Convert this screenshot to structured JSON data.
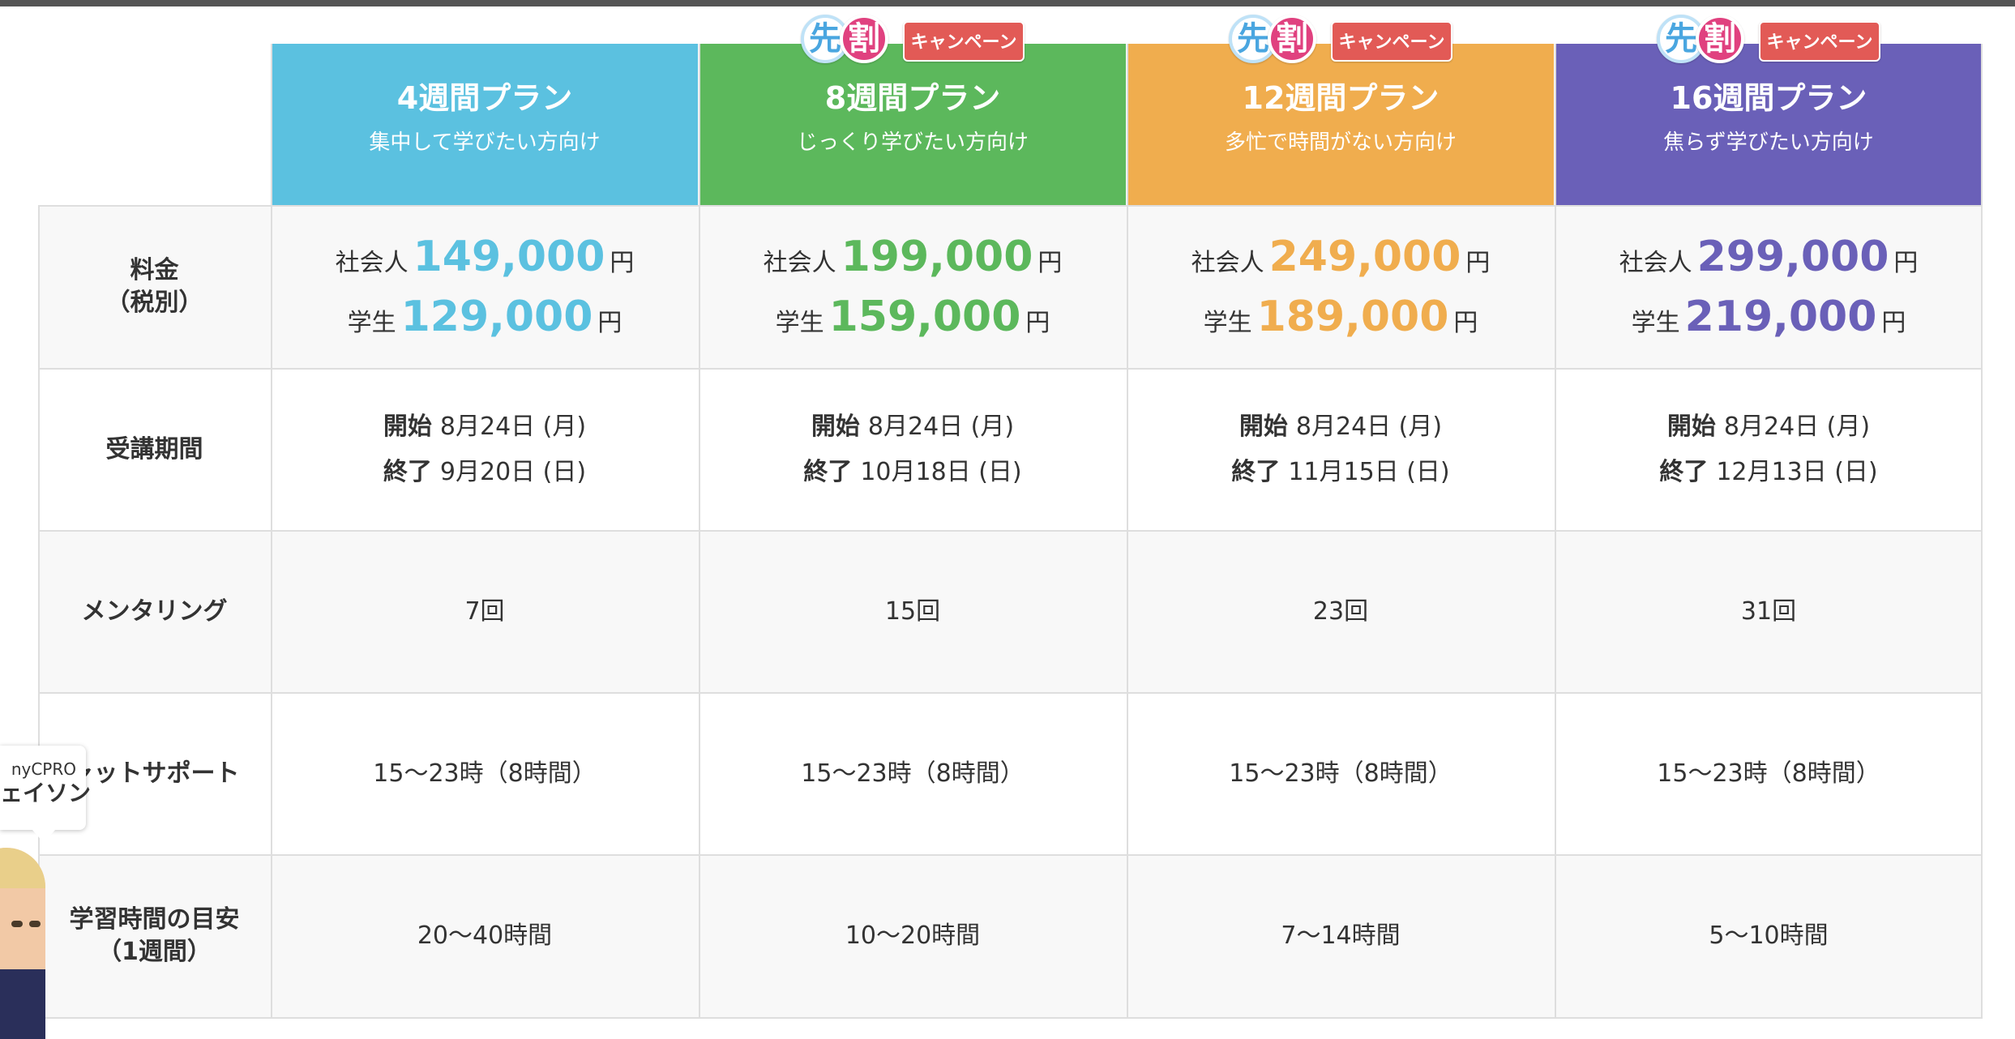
{
  "colors": {
    "plan_4": "#5bc1e0",
    "plan_8": "#5cb85c",
    "plan_12": "#f0ad4e",
    "plan_16": "#6a60b8",
    "badge_red": "#e25a56"
  },
  "badges": {
    "early_a": "先",
    "early_b": "割",
    "campaign": "キャンペーン"
  },
  "plans": [
    {
      "title": "4週間プラン",
      "subtitle": "集中して学びたい方向け",
      "has_badge": false,
      "price_worker_prefix": "社会人",
      "price_worker": "149,000",
      "price_student_prefix": "学生",
      "price_student": "129,000",
      "price_unit": "円",
      "start_label": "開始",
      "start": "8月24日 (月)",
      "end_label": "終了",
      "end": "9月20日 (日)",
      "mentoring": "7回",
      "chat_support": "15〜23時（8時間）",
      "study_time": "20〜40時間"
    },
    {
      "title": "8週間プラン",
      "subtitle": "じっくり学びたい方向け",
      "has_badge": true,
      "price_worker_prefix": "社会人",
      "price_worker": "199,000",
      "price_student_prefix": "学生",
      "price_student": "159,000",
      "price_unit": "円",
      "start_label": "開始",
      "start": "8月24日 (月)",
      "end_label": "終了",
      "end": "10月18日 (日)",
      "mentoring": "15回",
      "chat_support": "15〜23時（8時間）",
      "study_time": "10〜20時間"
    },
    {
      "title": "12週間プラン",
      "subtitle": "多忙で時間がない方向け",
      "has_badge": true,
      "price_worker_prefix": "社会人",
      "price_worker": "249,000",
      "price_student_prefix": "学生",
      "price_student": "189,000",
      "price_unit": "円",
      "start_label": "開始",
      "start": "8月24日 (月)",
      "end_label": "終了",
      "end": "11月15日 (日)",
      "mentoring": "23回",
      "chat_support": "15〜23時（8時間）",
      "study_time": "7〜14時間"
    },
    {
      "title": "16週間プラン",
      "subtitle": "焦らず学びたい方向け",
      "has_badge": true,
      "price_worker_prefix": "社会人",
      "price_worker": "299,000",
      "price_student_prefix": "学生",
      "price_student": "219,000",
      "price_unit": "円",
      "start_label": "開始",
      "start": "8月24日 (月)",
      "end_label": "終了",
      "end": "12月13日 (日)",
      "mentoring": "31回",
      "chat_support": "15〜23時（8時間）",
      "study_time": "5〜10時間"
    }
  ],
  "row_labels": {
    "price_line1": "料金",
    "price_line2": "（税別）",
    "period": "受講期間",
    "mentoring": "メンタリング",
    "chat_support": "ャットサポート",
    "study_time_line1": "学習時間の目安",
    "study_time_line2": "（1週間）"
  },
  "chat_widget": {
    "line1": "nyCPRO",
    "line2": "ェイソン"
  }
}
